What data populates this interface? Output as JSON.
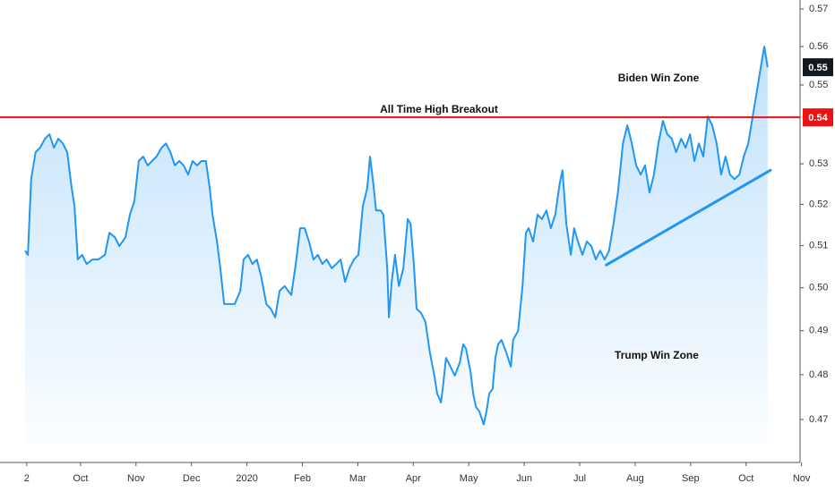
{
  "chart_data": {
    "type": "area",
    "yscale": "log",
    "xlim": [
      -0.452,
      13.974
    ],
    "ylim": [
      0.4606,
      0.5724
    ],
    "xticks": [
      {
        "value": 0.03,
        "label": "2"
      },
      {
        "value": 1,
        "label": "Oct"
      },
      {
        "value": 2,
        "label": "Nov"
      },
      {
        "value": 3,
        "label": "Dec"
      },
      {
        "value": 4,
        "label": "2020"
      },
      {
        "value": 5,
        "label": "Feb"
      },
      {
        "value": 6,
        "label": "Mar"
      },
      {
        "value": 7,
        "label": "Apr"
      },
      {
        "value": 8,
        "label": "May"
      },
      {
        "value": 9,
        "label": "Jun"
      },
      {
        "value": 10,
        "label": "Jul"
      },
      {
        "value": 11,
        "label": "Aug"
      },
      {
        "value": 12,
        "label": "Sep"
      },
      {
        "value": 13,
        "label": "Oct"
      },
      {
        "value": 14,
        "label": "Nov"
      }
    ],
    "yticks": [
      0.57,
      0.56,
      0.55,
      0.53,
      0.52,
      0.51,
      {
        "value": 0.5,
        "label": "0.50"
      },
      0.49,
      0.48,
      0.47
    ],
    "x": [
      0.0,
      0.05,
      0.11,
      0.19,
      0.27,
      0.36,
      0.44,
      0.52,
      0.6,
      0.68,
      0.76,
      0.84,
      0.89,
      0.95,
      1.03,
      1.11,
      1.21,
      1.32,
      1.44,
      1.52,
      1.62,
      1.7,
      1.81,
      1.89,
      1.97,
      2.05,
      2.13,
      2.21,
      2.29,
      2.37,
      2.46,
      2.54,
      2.62,
      2.7,
      2.78,
      2.86,
      2.94,
      3.02,
      3.1,
      3.18,
      3.26,
      3.33,
      3.38,
      3.46,
      3.52,
      3.59,
      3.67,
      3.78,
      3.88,
      3.94,
      4.02,
      4.1,
      4.18,
      4.26,
      4.35,
      4.43,
      4.51,
      4.59,
      4.68,
      4.8,
      4.88,
      4.96,
      5.04,
      5.12,
      5.2,
      5.28,
      5.36,
      5.44,
      5.53,
      5.61,
      5.69,
      5.77,
      5.85,
      5.93,
      6.01,
      6.09,
      6.17,
      6.22,
      6.28,
      6.33,
      6.41,
      6.46,
      6.53,
      6.56,
      6.61,
      6.67,
      6.74,
      6.82,
      6.9,
      6.95,
      7.01,
      7.06,
      7.14,
      7.22,
      7.3,
      7.38,
      7.43,
      7.5,
      7.54,
      7.59,
      7.67,
      7.75,
      7.84,
      7.9,
      7.95,
      8.03,
      8.08,
      8.13,
      8.19,
      8.27,
      8.32,
      8.37,
      8.43,
      8.48,
      8.53,
      8.59,
      8.68,
      8.76,
      8.8,
      8.89,
      8.97,
      9.03,
      9.08,
      9.16,
      9.24,
      9.32,
      9.4,
      9.48,
      9.56,
      9.64,
      9.69,
      9.76,
      9.84,
      9.9,
      9.97,
      10.05,
      10.13,
      10.21,
      10.29,
      10.37,
      10.45,
      10.53,
      10.61,
      10.69,
      10.78,
      10.86,
      10.94,
      11.02,
      11.1,
      11.18,
      11.26,
      11.34,
      11.42,
      11.5,
      11.58,
      11.66,
      11.74,
      11.83,
      11.91,
      11.99,
      12.07,
      12.15,
      12.23,
      12.31,
      12.39,
      12.47,
      12.55,
      12.63,
      12.71,
      12.79,
      12.88,
      12.96,
      13.04,
      13.12,
      13.2,
      13.28,
      13.33,
      13.39
    ],
    "series": [
      {
        "color": "#2196f3",
        "values": [
          0.5088,
          0.5078,
          0.5262,
          0.5329,
          0.534,
          0.5363,
          0.5374,
          0.534,
          0.5363,
          0.5351,
          0.5329,
          0.524,
          0.5196,
          0.5067,
          0.5078,
          0.5056,
          0.5067,
          0.5067,
          0.5078,
          0.5131,
          0.512,
          0.5099,
          0.512,
          0.5175,
          0.5207,
          0.5307,
          0.5318,
          0.5296,
          0.5307,
          0.5318,
          0.534,
          0.5351,
          0.5329,
          0.5296,
          0.5307,
          0.5296,
          0.5273,
          0.5307,
          0.5296,
          0.5307,
          0.5307,
          0.524,
          0.5175,
          0.511,
          0.5046,
          0.4962,
          0.4962,
          0.4962,
          0.4993,
          0.5067,
          0.5078,
          0.5056,
          0.5067,
          0.5025,
          0.4962,
          0.4951,
          0.4931,
          0.4993,
          0.5004,
          0.4983,
          0.5056,
          0.5142,
          0.5142,
          0.511,
          0.5067,
          0.5078,
          0.5056,
          0.5067,
          0.5046,
          0.5056,
          0.5067,
          0.5014,
          0.5046,
          0.5067,
          0.5078,
          0.5196,
          0.524,
          0.5318,
          0.5251,
          0.5185,
          0.5185,
          0.5175,
          0.5046,
          0.4931,
          0.5014,
          0.5078,
          0.5004,
          0.5046,
          0.5164,
          0.5153,
          0.5056,
          0.4951,
          0.4941,
          0.492,
          0.4849,
          0.4798,
          0.4758,
          0.4738,
          0.4778,
          0.4838,
          0.4818,
          0.4798,
          0.4828,
          0.4869,
          0.4859,
          0.4808,
          0.4758,
          0.4728,
          0.4718,
          0.4689,
          0.4718,
          0.4758,
          0.4768,
          0.4838,
          0.4869,
          0.4879,
          0.4849,
          0.4818,
          0.4879,
          0.49,
          0.5004,
          0.5131,
          0.5142,
          0.511,
          0.5175,
          0.5164,
          0.5185,
          0.5142,
          0.5175,
          0.5251,
          0.5284,
          0.5153,
          0.5078,
          0.5142,
          0.511,
          0.5078,
          0.511,
          0.5099,
          0.5067,
          0.5088,
          0.5067,
          0.5088,
          0.5153,
          0.5229,
          0.5351,
          0.5397,
          0.5351,
          0.5296,
          0.5273,
          0.5296,
          0.5229,
          0.5273,
          0.5351,
          0.5408,
          0.5374,
          0.5363,
          0.5329,
          0.5363,
          0.534,
          0.5374,
          0.5307,
          0.5351,
          0.5318,
          0.5419,
          0.5397,
          0.5351,
          0.5273,
          0.5318,
          0.5273,
          0.5262,
          0.5273,
          0.5318,
          0.5351,
          0.5419,
          0.5488,
          0.5558,
          0.56,
          0.5546
        ]
      }
    ],
    "trendline": {
      "color": "#2196f3",
      "x": [
        10.48,
        13.44
      ],
      "values": [
        0.5054,
        0.5284
      ]
    },
    "hline": {
      "value": 0.5417,
      "label": "0.54",
      "color": "#ee1111"
    },
    "last_value": {
      "value": 0.5546,
      "label": "0.55"
    },
    "annotations": [
      "Biden Win Zone",
      "All Time High Breakout",
      "Trump Win Zone"
    ]
  }
}
